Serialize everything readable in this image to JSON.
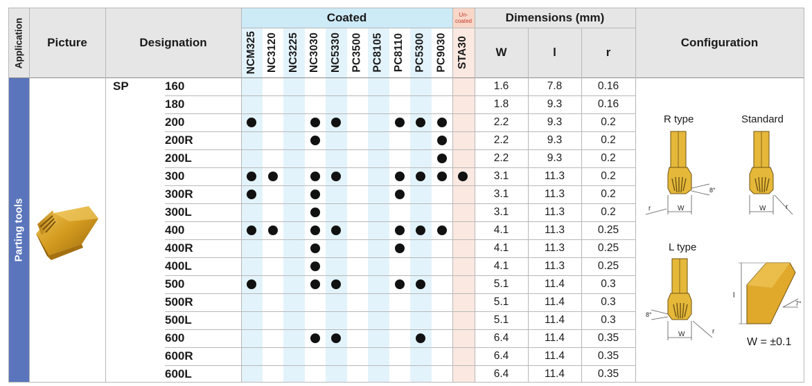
{
  "header": {
    "application": "Application",
    "picture": "Picture",
    "designation": "Designation",
    "coated": "Coated",
    "uncoated": "Un-\ncoated",
    "dimensions": "Dimensions (mm)",
    "configuration": "Configuration",
    "dim_cols": [
      "W",
      "l",
      "r"
    ]
  },
  "grades": [
    "NCM325",
    "NC3120",
    "NC3225",
    "NC3030",
    "NC5330",
    "PC3500",
    "PC8105",
    "PC8110",
    "PC5300",
    "PC9030",
    "STA30"
  ],
  "application": "Parting tools",
  "series": "SP",
  "rows": [
    {
      "code": "160",
      "W": "1.6",
      "l": "7.8",
      "r": "0.16",
      "dots": []
    },
    {
      "code": "180",
      "W": "1.8",
      "l": "9.3",
      "r": "0.16",
      "dots": []
    },
    {
      "code": "200",
      "W": "2.2",
      "l": "9.3",
      "r": "0.2",
      "dots": [
        0,
        3,
        4,
        7,
        8,
        9
      ]
    },
    {
      "code": "200R",
      "W": "2.2",
      "l": "9.3",
      "r": "0.2",
      "dots": [
        3,
        9
      ]
    },
    {
      "code": "200L",
      "W": "2.2",
      "l": "9.3",
      "r": "0.2",
      "dots": [
        9
      ]
    },
    {
      "code": "300",
      "W": "3.1",
      "l": "11.3",
      "r": "0.2",
      "dots": [
        0,
        1,
        3,
        4,
        7,
        8,
        9,
        10
      ]
    },
    {
      "code": "300R",
      "W": "3.1",
      "l": "11.3",
      "r": "0.2",
      "dots": [
        0,
        3,
        7
      ]
    },
    {
      "code": "300L",
      "W": "3.1",
      "l": "11.3",
      "r": "0.2",
      "dots": [
        3
      ]
    },
    {
      "code": "400",
      "W": "4.1",
      "l": "11.3",
      "r": "0.25",
      "dots": [
        0,
        1,
        3,
        4,
        7,
        8,
        9
      ]
    },
    {
      "code": "400R",
      "W": "4.1",
      "l": "11.3",
      "r": "0.25",
      "dots": [
        3,
        7
      ]
    },
    {
      "code": "400L",
      "W": "4.1",
      "l": "11.3",
      "r": "0.25",
      "dots": [
        3
      ]
    },
    {
      "code": "500",
      "W": "5.1",
      "l": "11.4",
      "r": "0.3",
      "dots": [
        0,
        3,
        4,
        7,
        8
      ]
    },
    {
      "code": "500R",
      "W": "5.1",
      "l": "11.4",
      "r": "0.3",
      "dots": []
    },
    {
      "code": "500L",
      "W": "5.1",
      "l": "11.4",
      "r": "0.3",
      "dots": []
    },
    {
      "code": "600",
      "W": "6.4",
      "l": "11.4",
      "r": "0.35",
      "dots": [
        3,
        4,
        8
      ]
    },
    {
      "code": "600R",
      "W": "6.4",
      "l": "11.4",
      "r": "0.35",
      "dots": []
    },
    {
      "code": "600L",
      "W": "6.4",
      "l": "11.4",
      "r": "0.35",
      "dots": []
    }
  ],
  "configuration": {
    "r_type": "R type",
    "standard": "Standard",
    "l_type": "L type",
    "w_label": "W",
    "r_label": "r",
    "l_label": "l",
    "angle_8": "8°",
    "angle_7": "7°",
    "tolerance": "W = ±0.1"
  },
  "colors": {
    "header_gray": "#e6e6e6",
    "coated_blue": "#cdeaf7",
    "column_blue": "#e3f3fb",
    "uncoated_pink": "#f8d7c8",
    "uncoated_col": "#fbe9e1",
    "application_blue": "#5a75bb",
    "insert_gold": "#d8a62a"
  }
}
